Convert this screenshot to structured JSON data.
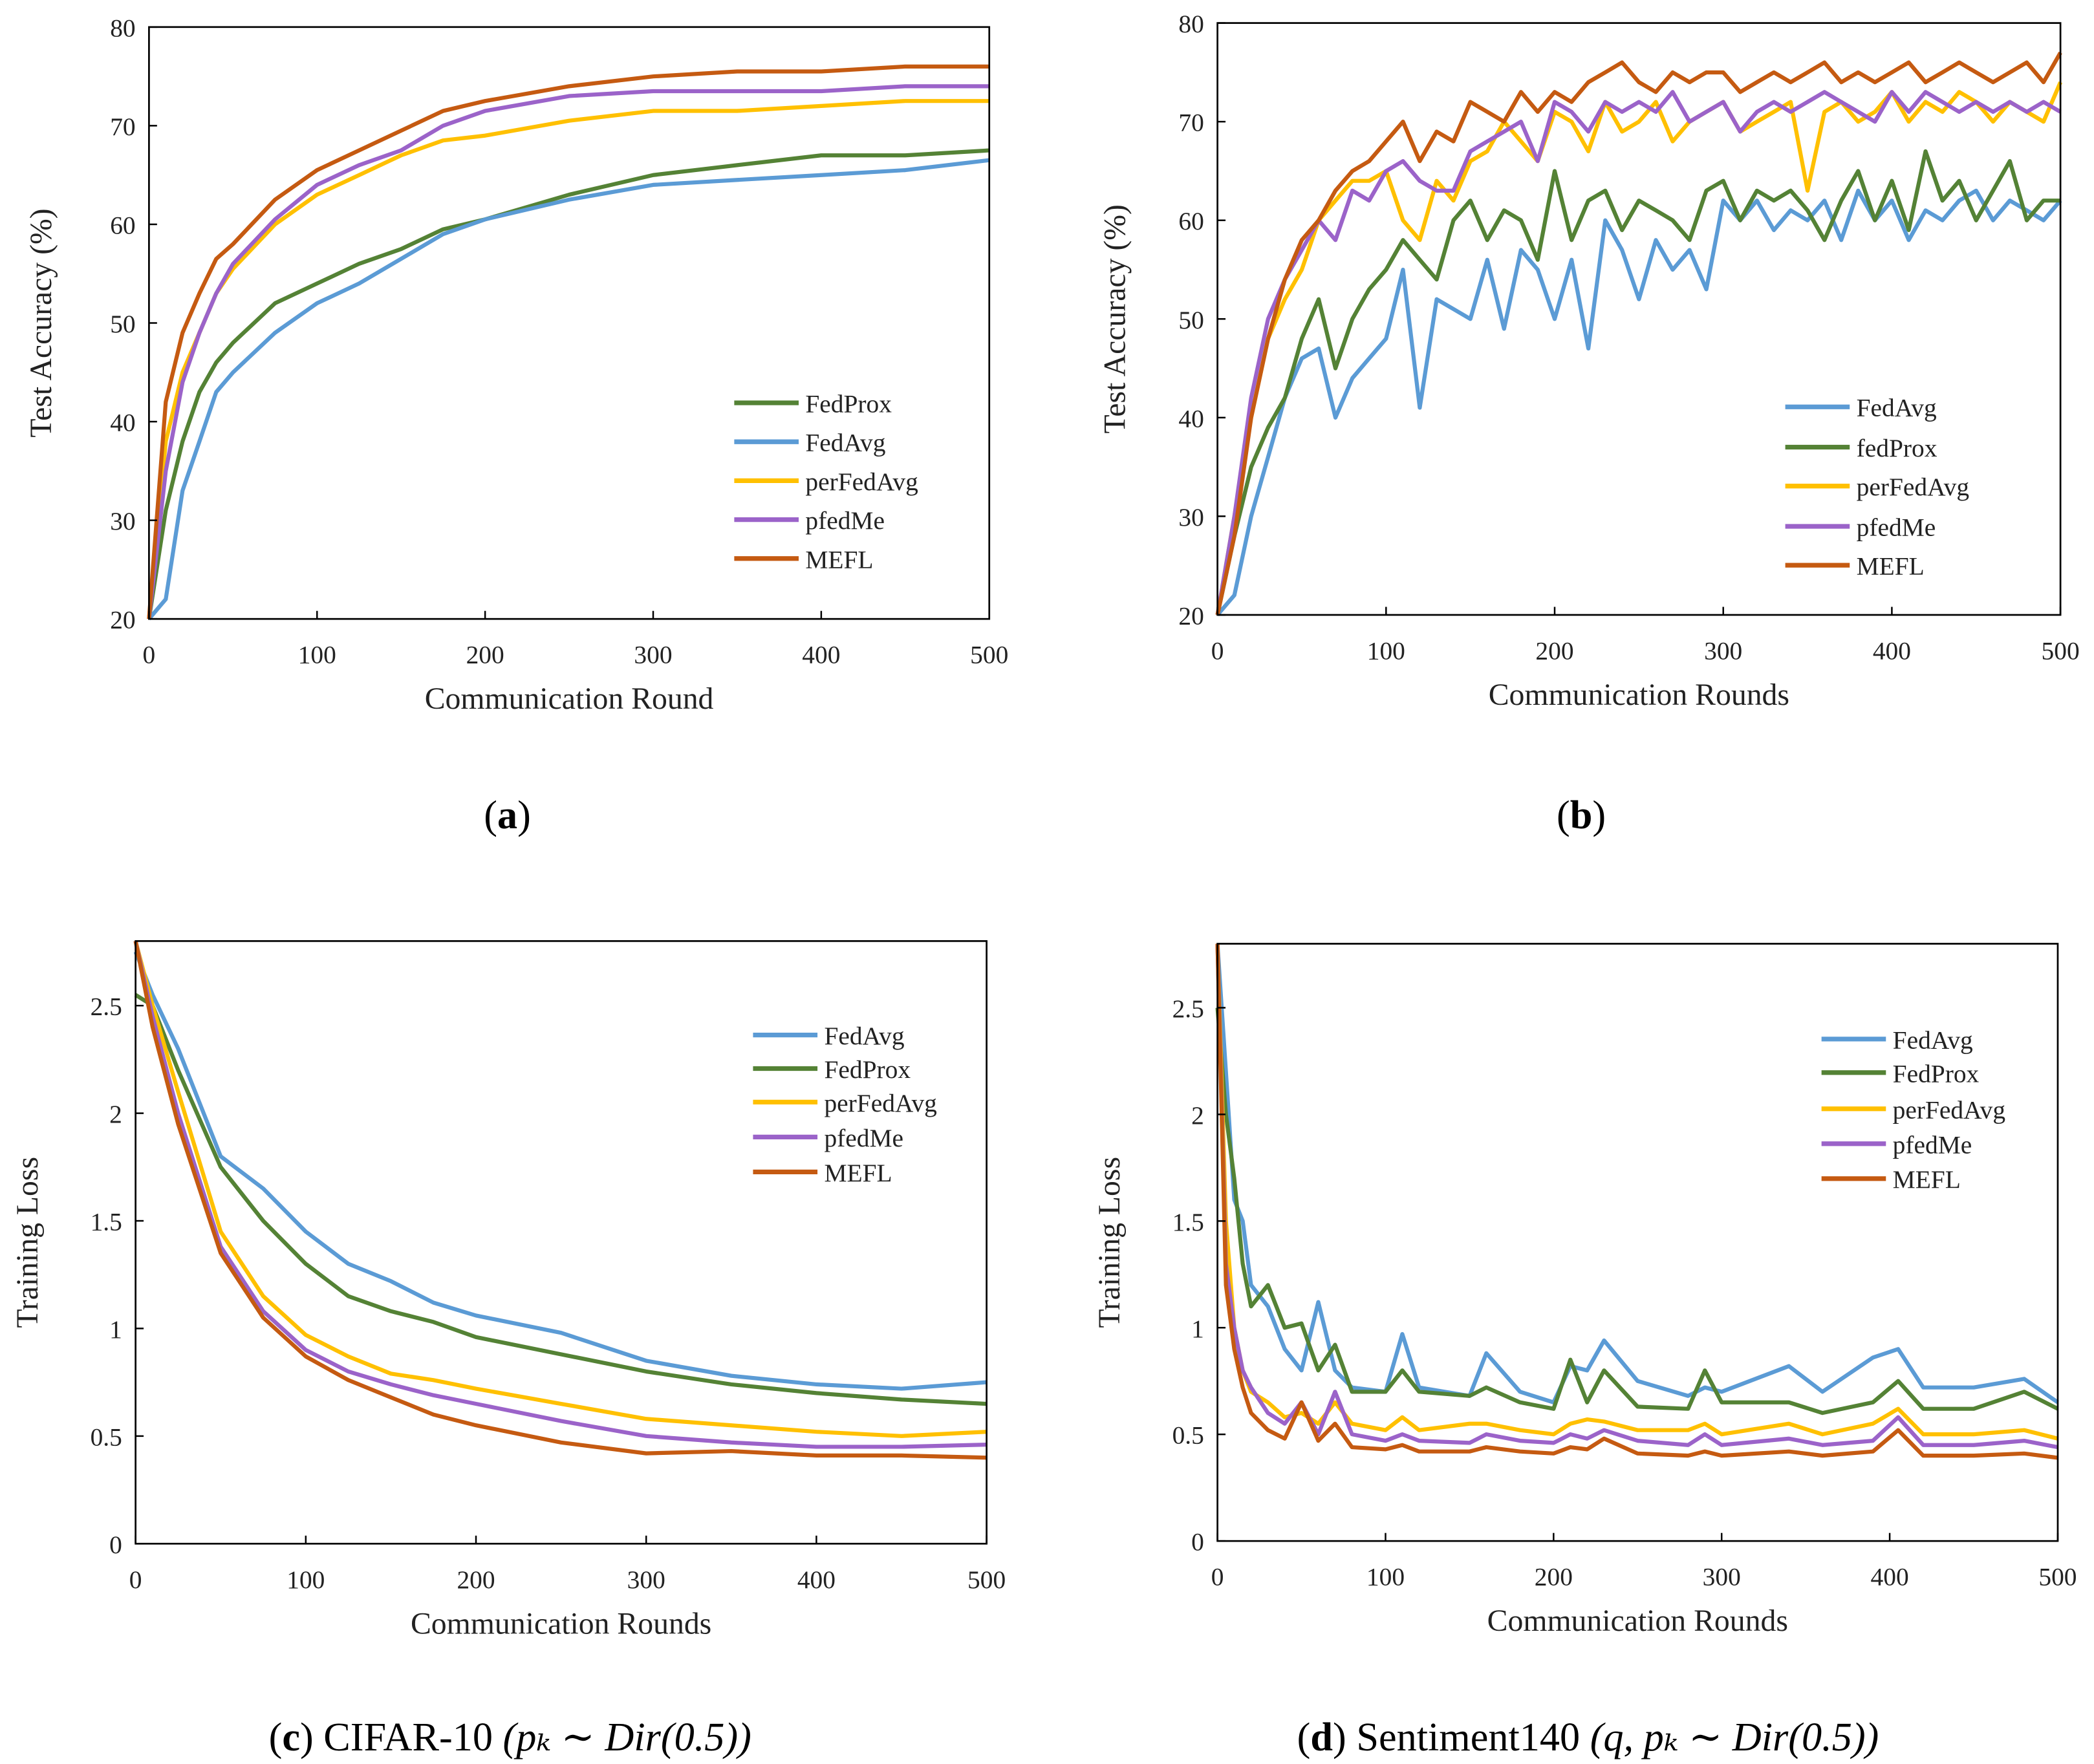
{
  "colors": {
    "FedProx": "#548235",
    "fedProx": "#548235",
    "FedAvg": "#5b9bd5",
    "perFedAvg": "#ffc000",
    "pfedMe": "#9b63c9",
    "MEFL": "#c55a11"
  },
  "chart_data": [
    {
      "type": "line",
      "id": "a",
      "caption": {
        "label": "a",
        "name": "",
        "math": ""
      },
      "xlabel": "Communication Round",
      "ylabel": "Test Accuracy (%)",
      "xlim": [
        0,
        500
      ],
      "ylim": [
        20,
        80
      ],
      "xticks": [
        "0",
        "100",
        "200",
        "300",
        "400",
        "500"
      ],
      "yticks": [
        "20",
        "30",
        "40",
        "50",
        "60",
        "70",
        "80"
      ],
      "legend_position": "bottom-right",
      "x": [
        0,
        10,
        20,
        30,
        40,
        50,
        75,
        100,
        125,
        150,
        175,
        200,
        250,
        300,
        350,
        400,
        450,
        500
      ],
      "series": [
        {
          "name": "FedProx",
          "values": [
            18,
            31,
            38,
            43,
            46,
            48,
            52,
            54,
            56,
            57.5,
            59.5,
            60.5,
            63,
            65,
            66,
            67,
            67,
            67.5
          ]
        },
        {
          "name": "FedAvg",
          "values": [
            15,
            22,
            33,
            38,
            43,
            45,
            49,
            52,
            54,
            56.5,
            59,
            60.5,
            62.5,
            64,
            64.5,
            65,
            65.5,
            66.5
          ]
        },
        {
          "name": "perFedAvg",
          "values": [
            18,
            38,
            45,
            49,
            53,
            55.5,
            60,
            63,
            65,
            67,
            68.5,
            69,
            70.5,
            71.5,
            71.5,
            72,
            72.5,
            72.5
          ]
        },
        {
          "name": "pfedMe",
          "values": [
            18,
            35,
            44,
            49,
            53,
            56,
            60.5,
            64,
            66,
            67.5,
            70,
            71.5,
            73,
            73.5,
            73.5,
            73.5,
            74,
            74
          ]
        },
        {
          "name": "MEFL",
          "values": [
            18,
            42,
            49,
            53,
            56.5,
            58,
            62.5,
            65.5,
            67.5,
            69.5,
            71.5,
            72.5,
            74,
            75,
            75.5,
            75.5,
            76,
            76
          ]
        }
      ]
    },
    {
      "type": "line",
      "id": "b",
      "caption": {
        "label": "b",
        "name": "",
        "math": ""
      },
      "xlabel": "Communication Rounds",
      "ylabel": "Test Accuracy (%)",
      "xlim": [
        0,
        500
      ],
      "ylim": [
        20,
        80
      ],
      "xticks": [
        "0",
        "100",
        "200",
        "300",
        "400",
        "500"
      ],
      "yticks": [
        "20",
        "30",
        "40",
        "50",
        "60",
        "70",
        "80"
      ],
      "legend_position": "bottom-right",
      "x": [
        0,
        10,
        20,
        30,
        40,
        50,
        60,
        70,
        80,
        90,
        100,
        110,
        120,
        130,
        140,
        150,
        160,
        170,
        180,
        190,
        200,
        210,
        220,
        230,
        240,
        250,
        260,
        270,
        280,
        290,
        300,
        310,
        320,
        330,
        340,
        350,
        360,
        370,
        380,
        390,
        400,
        410,
        420,
        430,
        440,
        450,
        460,
        470,
        480,
        490,
        500
      ],
      "series": [
        {
          "name": "FedAvg",
          "values": [
            18,
            22,
            30,
            36,
            42,
            46,
            47,
            40,
            44,
            46,
            48,
            55,
            41,
            52,
            51,
            50,
            56,
            49,
            57,
            55,
            50,
            56,
            47,
            60,
            57,
            52,
            58,
            55,
            57,
            53,
            62,
            60,
            62,
            59,
            61,
            60,
            62,
            58,
            63,
            60,
            62,
            58,
            61,
            60,
            62,
            63,
            60,
            62,
            61,
            60,
            62
          ]
        },
        {
          "name": "fedProx",
          "values": [
            18,
            28,
            35,
            39,
            42,
            48,
            52,
            45,
            50,
            53,
            55,
            58,
            56,
            54,
            60,
            62,
            58,
            61,
            60,
            56,
            65,
            58,
            62,
            63,
            59,
            62,
            61,
            60,
            58,
            63,
            64,
            60,
            63,
            62,
            63,
            61,
            58,
            62,
            65,
            60,
            64,
            59,
            67,
            62,
            64,
            60,
            63,
            66,
            60,
            62,
            62
          ]
        },
        {
          "name": "perFedAvg",
          "values": [
            18,
            30,
            40,
            48,
            52,
            55,
            60,
            62,
            64,
            64,
            65,
            60,
            58,
            64,
            62,
            66,
            67,
            70,
            68,
            66,
            71,
            70,
            67,
            72,
            69,
            70,
            72,
            68,
            70,
            71,
            72,
            69,
            70,
            71,
            72,
            63,
            71,
            72,
            70,
            71,
            73,
            70,
            72,
            71,
            73,
            72,
            70,
            72,
            71,
            70,
            74
          ]
        },
        {
          "name": "pfedMe",
          "values": [
            18,
            30,
            42,
            50,
            54,
            57,
            60,
            58,
            63,
            62,
            65,
            66,
            64,
            63,
            63,
            67,
            68,
            69,
            70,
            66,
            72,
            71,
            69,
            72,
            71,
            72,
            71,
            73,
            70,
            71,
            72,
            69,
            71,
            72,
            71,
            72,
            73,
            72,
            71,
            70,
            73,
            71,
            73,
            72,
            71,
            72,
            71,
            72,
            71,
            72,
            71
          ]
        },
        {
          "name": "MEFL",
          "values": [
            18,
            28,
            40,
            48,
            54,
            58,
            60,
            63,
            65,
            66,
            68,
            70,
            66,
            69,
            68,
            72,
            71,
            70,
            73,
            71,
            73,
            72,
            74,
            75,
            76,
            74,
            73,
            75,
            74,
            75,
            75,
            73,
            74,
            75,
            74,
            75,
            76,
            74,
            75,
            74,
            75,
            76,
            74,
            75,
            76,
            75,
            74,
            75,
            76,
            74,
            77
          ]
        }
      ]
    },
    {
      "type": "line",
      "id": "c",
      "caption": {
        "label": "c",
        "name": "CIFAR-10",
        "math": "(pₖ ∼ Dir(0.5))"
      },
      "xlabel": "Communication Rounds",
      "ylabel": "Training Loss",
      "xlim": [
        0,
        500
      ],
      "ylim": [
        0,
        2.8
      ],
      "xticks": [
        "0",
        "100",
        "200",
        "300",
        "400",
        "500"
      ],
      "yticks": [
        "0",
        "0.5",
        "1",
        "1.5",
        "2",
        "2.5"
      ],
      "legend_position": "top-right",
      "x": [
        0,
        10,
        25,
        50,
        75,
        100,
        125,
        150,
        175,
        200,
        250,
        300,
        350,
        400,
        450,
        500
      ],
      "series": [
        {
          "name": "FedAvg",
          "values": [
            2.75,
            2.55,
            2.3,
            1.8,
            1.65,
            1.45,
            1.3,
            1.22,
            1.12,
            1.06,
            0.98,
            0.85,
            0.78,
            0.74,
            0.72,
            0.75
          ]
        },
        {
          "name": "FedProx",
          "values": [
            2.55,
            2.5,
            2.2,
            1.75,
            1.5,
            1.3,
            1.15,
            1.08,
            1.03,
            0.96,
            0.88,
            0.8,
            0.74,
            0.7,
            0.67,
            0.65
          ]
        },
        {
          "name": "perFedAvg",
          "values": [
            2.8,
            2.5,
            2.1,
            1.45,
            1.15,
            0.97,
            0.87,
            0.79,
            0.76,
            0.72,
            0.65,
            0.58,
            0.55,
            0.52,
            0.5,
            0.52
          ]
        },
        {
          "name": "pfedMe",
          "values": [
            2.8,
            2.45,
            2.0,
            1.38,
            1.08,
            0.9,
            0.8,
            0.74,
            0.69,
            0.65,
            0.57,
            0.5,
            0.47,
            0.45,
            0.45,
            0.46
          ]
        },
        {
          "name": "MEFL",
          "values": [
            2.8,
            2.4,
            1.95,
            1.35,
            1.05,
            0.87,
            0.76,
            0.68,
            0.6,
            0.55,
            0.47,
            0.42,
            0.43,
            0.41,
            0.41,
            0.4
          ]
        }
      ]
    },
    {
      "type": "line",
      "id": "d",
      "caption": {
        "label": "d",
        "name": "Sentiment140",
        "math": "(q, pₖ ∼ Dir(0.5))"
      },
      "xlabel": "Communication Rounds",
      "ylabel": "Training Loss",
      "xlim": [
        0,
        500
      ],
      "ylim": [
        0,
        2.8
      ],
      "xticks": [
        "0",
        "100",
        "200",
        "300",
        "400",
        "500"
      ],
      "yticks": [
        "0",
        "0.5",
        "1",
        "1.5",
        "2",
        "2.5"
      ],
      "legend_position": "top-right",
      "x": [
        0,
        5,
        10,
        15,
        20,
        30,
        40,
        50,
        60,
        70,
        80,
        100,
        110,
        120,
        150,
        160,
        180,
        200,
        210,
        220,
        230,
        250,
        280,
        290,
        300,
        340,
        360,
        390,
        405,
        420,
        450,
        480,
        500
      ],
      "series": [
        {
          "name": "FedAvg",
          "values": [
            2.8,
            2.2,
            1.6,
            1.5,
            1.2,
            1.1,
            0.9,
            0.8,
            1.12,
            0.8,
            0.72,
            0.7,
            0.97,
            0.72,
            0.68,
            0.88,
            0.7,
            0.65,
            0.82,
            0.8,
            0.94,
            0.75,
            0.68,
            0.72,
            0.7,
            0.82,
            0.7,
            0.86,
            0.9,
            0.72,
            0.72,
            0.76,
            0.65
          ]
        },
        {
          "name": "FedProx",
          "values": [
            2.5,
            2.0,
            1.7,
            1.3,
            1.1,
            1.2,
            1.0,
            1.02,
            0.8,
            0.92,
            0.7,
            0.7,
            0.8,
            0.7,
            0.68,
            0.72,
            0.65,
            0.62,
            0.85,
            0.65,
            0.8,
            0.63,
            0.62,
            0.8,
            0.65,
            0.65,
            0.6,
            0.65,
            0.75,
            0.62,
            0.62,
            0.7,
            0.62
          ]
        },
        {
          "name": "perFedAvg",
          "values": [
            2.8,
            1.5,
            1.0,
            0.8,
            0.7,
            0.65,
            0.58,
            0.6,
            0.55,
            0.65,
            0.55,
            0.52,
            0.58,
            0.52,
            0.55,
            0.55,
            0.52,
            0.5,
            0.55,
            0.57,
            0.56,
            0.52,
            0.52,
            0.55,
            0.5,
            0.55,
            0.5,
            0.55,
            0.62,
            0.5,
            0.5,
            0.52,
            0.48
          ]
        },
        {
          "name": "pfedMe",
          "values": [
            2.8,
            1.3,
            1.0,
            0.8,
            0.72,
            0.6,
            0.55,
            0.65,
            0.5,
            0.7,
            0.5,
            0.47,
            0.5,
            0.47,
            0.46,
            0.5,
            0.47,
            0.46,
            0.5,
            0.48,
            0.52,
            0.47,
            0.45,
            0.5,
            0.45,
            0.48,
            0.45,
            0.47,
            0.58,
            0.45,
            0.45,
            0.47,
            0.44
          ]
        },
        {
          "name": "MEFL",
          "values": [
            2.8,
            1.2,
            0.9,
            0.72,
            0.6,
            0.52,
            0.48,
            0.65,
            0.47,
            0.55,
            0.44,
            0.43,
            0.45,
            0.42,
            0.42,
            0.44,
            0.42,
            0.41,
            0.44,
            0.43,
            0.48,
            0.41,
            0.4,
            0.42,
            0.4,
            0.42,
            0.4,
            0.42,
            0.52,
            0.4,
            0.4,
            0.41,
            0.39
          ]
        }
      ]
    }
  ]
}
